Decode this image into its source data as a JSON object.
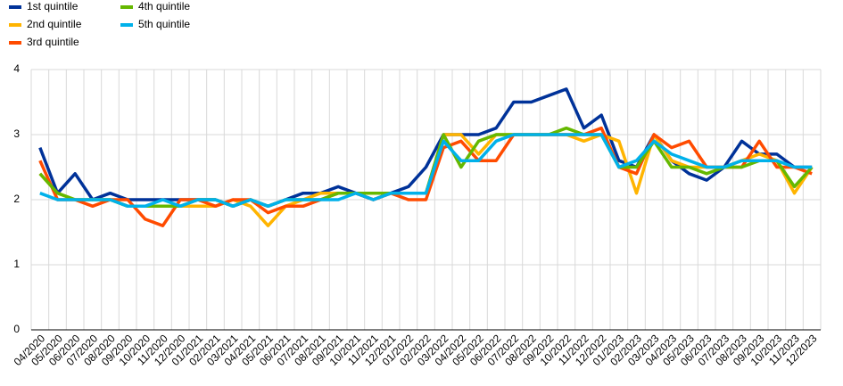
{
  "chart_data": {
    "type": "line",
    "categories": [
      "04/2020",
      "05/2020",
      "06/2020",
      "07/2020",
      "08/2020",
      "09/2020",
      "10/2020",
      "11/2020",
      "12/2020",
      "01/2021",
      "02/2021",
      "03/2021",
      "04/2021",
      "05/2021",
      "06/2021",
      "07/2021",
      "08/2021",
      "09/2021",
      "10/2021",
      "11/2021",
      "12/2021",
      "01/2022",
      "02/2022",
      "03/2022",
      "04/2022",
      "05/2022",
      "06/2022",
      "07/2022",
      "08/2022",
      "09/2022",
      "10/2022",
      "11/2022",
      "12/2022",
      "01/2023",
      "02/2023",
      "03/2023",
      "04/2023",
      "05/2023",
      "06/2023",
      "07/2023",
      "08/2023",
      "09/2023",
      "10/2023",
      "11/2023",
      "12/2023"
    ],
    "series": [
      {
        "name": "1st quintile",
        "color": "#003299",
        "values": [
          2.8,
          2.1,
          2.4,
          2.0,
          2.1,
          2.0,
          2.0,
          2.0,
          2.0,
          2.0,
          2.0,
          1.9,
          2.0,
          1.9,
          2.0,
          2.1,
          2.1,
          2.2,
          2.1,
          2.0,
          2.1,
          2.2,
          2.5,
          3.0,
          3.0,
          3.0,
          3.1,
          3.5,
          3.5,
          3.6,
          3.7,
          3.1,
          3.3,
          2.6,
          2.5,
          3.0,
          2.6,
          2.4,
          2.3,
          2.5,
          2.9,
          2.7,
          2.7,
          2.5,
          2.5
        ]
      },
      {
        "name": "2nd quintile",
        "color": "#ffb400",
        "values": [
          2.4,
          2.1,
          2.0,
          2.0,
          2.0,
          1.9,
          1.9,
          1.9,
          1.9,
          1.9,
          1.9,
          2.0,
          1.9,
          1.6,
          1.9,
          2.0,
          2.1,
          2.1,
          2.1,
          2.1,
          2.1,
          2.1,
          2.1,
          3.0,
          3.0,
          2.7,
          3.0,
          3.0,
          3.0,
          3.0,
          3.0,
          2.9,
          3.0,
          2.9,
          2.1,
          3.0,
          2.6,
          2.5,
          2.5,
          2.5,
          2.6,
          2.7,
          2.6,
          2.1,
          2.5
        ]
      },
      {
        "name": "3rd quintile",
        "color": "#ff4b00",
        "values": [
          2.6,
          2.0,
          2.0,
          1.9,
          2.0,
          2.0,
          1.7,
          1.6,
          2.0,
          2.0,
          1.9,
          2.0,
          2.0,
          1.8,
          1.9,
          1.9,
          2.0,
          2.1,
          2.1,
          2.0,
          2.1,
          2.0,
          2.0,
          2.8,
          2.9,
          2.6,
          2.6,
          3.0,
          3.0,
          3.0,
          3.0,
          3.0,
          3.1,
          2.5,
          2.4,
          3.0,
          2.8,
          2.9,
          2.5,
          2.5,
          2.5,
          2.9,
          2.5,
          2.5,
          2.4
        ]
      },
      {
        "name": "4th quintile",
        "color": "#65b800",
        "values": [
          2.4,
          2.1,
          2.0,
          2.0,
          2.0,
          1.9,
          1.9,
          1.9,
          1.9,
          2.0,
          2.0,
          1.9,
          2.0,
          1.9,
          2.0,
          2.0,
          2.0,
          2.1,
          2.1,
          2.1,
          2.1,
          2.1,
          2.1,
          3.0,
          2.5,
          2.9,
          3.0,
          3.0,
          3.0,
          3.0,
          3.1,
          3.0,
          3.0,
          2.5,
          2.5,
          2.9,
          2.5,
          2.5,
          2.4,
          2.5,
          2.5,
          2.6,
          2.6,
          2.2,
          2.5
        ]
      },
      {
        "name": "5th quintile",
        "color": "#00b1ea",
        "values": [
          2.1,
          2.0,
          2.0,
          2.0,
          2.0,
          1.9,
          1.9,
          2.0,
          1.9,
          2.0,
          2.0,
          1.9,
          2.0,
          1.9,
          2.0,
          2.0,
          2.0,
          2.0,
          2.1,
          2.0,
          2.1,
          2.1,
          2.1,
          2.9,
          2.6,
          2.6,
          2.9,
          3.0,
          3.0,
          3.0,
          3.0,
          3.0,
          3.0,
          2.5,
          2.6,
          2.9,
          2.7,
          2.6,
          2.5,
          2.5,
          2.6,
          2.6,
          2.6,
          2.5,
          2.5
        ]
      }
    ],
    "ylim": [
      0,
      4
    ],
    "yticks": [
      0,
      1,
      2,
      3,
      4
    ],
    "grid": true,
    "legend": "top-left"
  }
}
